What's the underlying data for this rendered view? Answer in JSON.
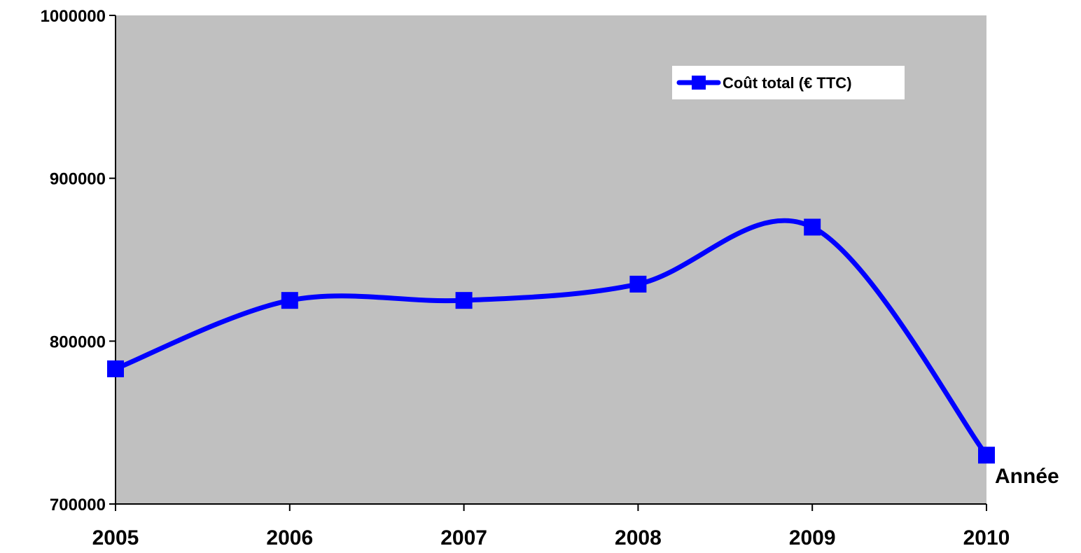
{
  "chart_data": {
    "type": "line",
    "smooth": true,
    "categories": [
      "2005",
      "2006",
      "2007",
      "2008",
      "2009",
      "2010"
    ],
    "series": [
      {
        "name": "Coût total (€ TTC)",
        "values": [
          783000,
          825000,
          825000,
          835000,
          870000,
          730000
        ],
        "color": "#0000ff",
        "marker": "square"
      }
    ],
    "xlabel": "Année",
    "ylabel": "",
    "ylim": [
      700000,
      1000000
    ],
    "yticks": [
      "700000",
      "800000",
      "900000",
      "1000000"
    ],
    "ytick_values": [
      700000,
      800000,
      900000,
      1000000
    ],
    "plot_background": "#c0c0c0",
    "grid": false,
    "legend_position": "top-right"
  }
}
